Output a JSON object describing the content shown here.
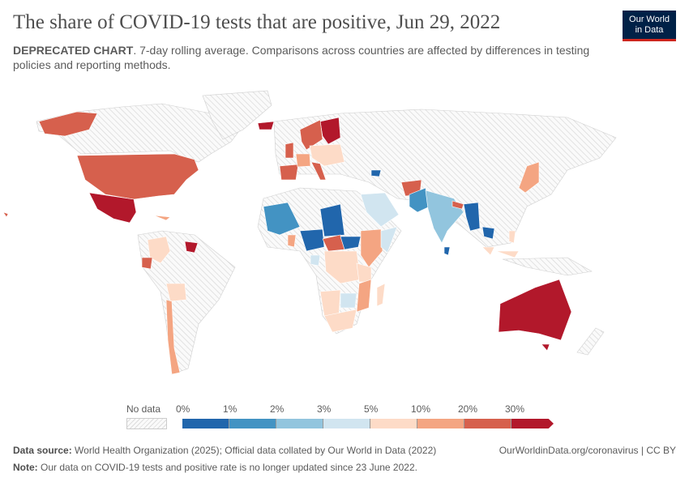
{
  "header": {
    "title": "The share of COVID-19 tests that are positive, Jun 29, 2022",
    "subtitle_bold": "DEPRECATED CHART",
    "subtitle_rest": ". 7-day rolling average. Comparisons across countries are affected by differences in testing policies and reporting methods.",
    "logo_line1": "Our World",
    "logo_line2": "in Data"
  },
  "legend": {
    "no_data_label": "No data",
    "bins": [
      {
        "label": "0%",
        "color": "#2166ac"
      },
      {
        "label": "1%",
        "color": "#4393c3"
      },
      {
        "label": "2%",
        "color": "#92c5de"
      },
      {
        "label": "3%",
        "color": "#d1e5f0"
      },
      {
        "label": "5%",
        "color": "#fddbc7"
      },
      {
        "label": "10%",
        "color": "#f4a582"
      },
      {
        "label": "20%",
        "color": "#d6604d"
      },
      {
        "label": "30%",
        "color": "#b2182b"
      }
    ]
  },
  "footer": {
    "source_label": "Data source:",
    "source_text": " World Health Organization (2025); Official data collated by Our World in Data (2022)",
    "url": "OurWorldinData.org/coronavirus | CC BY",
    "note_label": "Note:",
    "note_text": " Our data on COVID-19 tests and positive rate is no longer updated since 23 June 2022."
  },
  "colors": {
    "no_data": "#e6e6e6",
    "border": "#ffffff"
  }
}
